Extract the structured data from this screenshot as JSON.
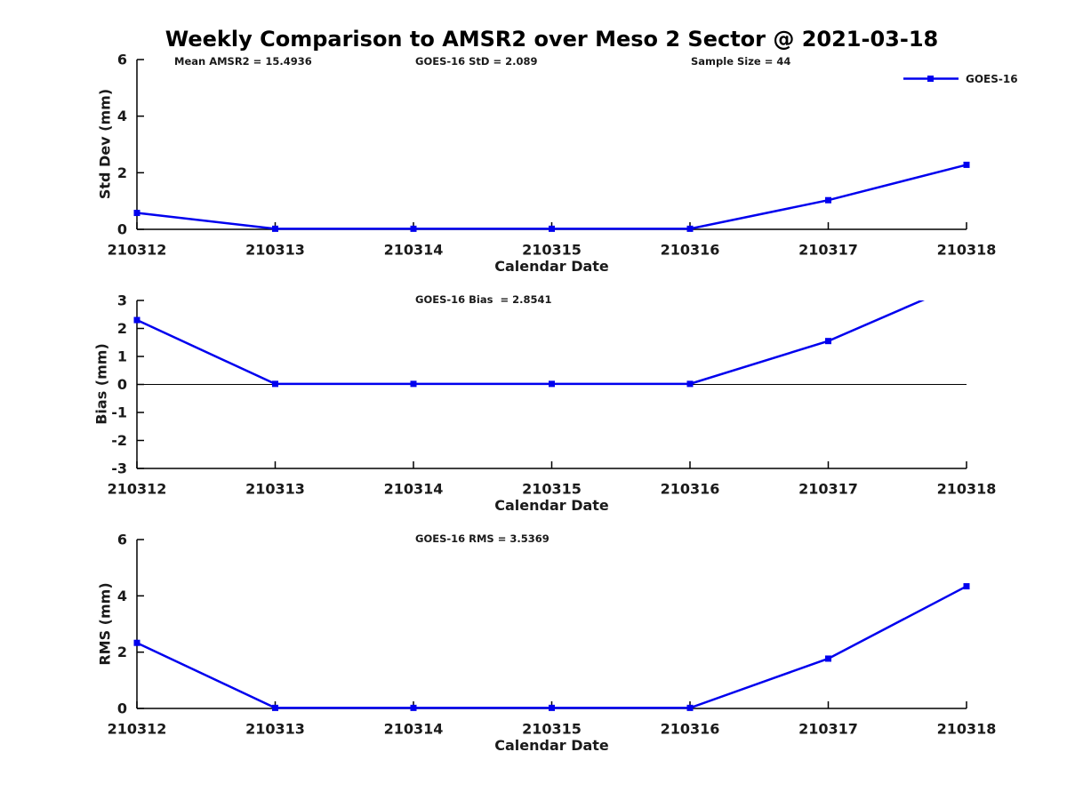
{
  "figure": {
    "title": "Weekly Comparison to AMSR2 over Meso 2 Sector @ 2021-03-18",
    "line_color": "#0000ee",
    "legend": {
      "label": "GOES-16"
    }
  },
  "chart_data": [
    {
      "type": "line",
      "panel": "std-dev",
      "annotations": {
        "left": "Mean AMSR2 = 15.4936",
        "center": "GOES-16 StD = 2.089",
        "right": "Sample Size = 44"
      },
      "ylabel": "Std Dev (mm)",
      "xlabel": "Calendar Date",
      "categories": [
        "210312",
        "210313",
        "210314",
        "210315",
        "210316",
        "210317",
        "210318"
      ],
      "yticks": [
        0,
        2,
        4,
        6
      ],
      "ylim": [
        0,
        6
      ],
      "grid": false,
      "zero_line": false,
      "legend_position": "upper right",
      "series": [
        {
          "name": "GOES-16",
          "values": [
            0.58,
            0.02,
            0.02,
            0.02,
            0.02,
            1.03,
            2.28
          ]
        }
      ]
    },
    {
      "type": "line",
      "panel": "bias",
      "annotations": {
        "center": "GOES-16 Bias  = 2.8541"
      },
      "ylabel": "Bias (mm)",
      "xlabel": "Calendar Date",
      "categories": [
        "210312",
        "210313",
        "210314",
        "210315",
        "210316",
        "210317",
        "210318"
      ],
      "yticks": [
        -3,
        -2,
        -1,
        0,
        1,
        2,
        3
      ],
      "ylim": [
        -3,
        3
      ],
      "grid": false,
      "zero_line": true,
      "series": [
        {
          "name": "GOES-16",
          "values": [
            2.3,
            0.02,
            0.02,
            0.02,
            0.02,
            1.55,
            3.69
          ]
        }
      ]
    },
    {
      "type": "line",
      "panel": "rms",
      "annotations": {
        "center": "GOES-16 RMS = 3.5369"
      },
      "ylabel": "RMS (mm)",
      "xlabel": "Calendar Date",
      "categories": [
        "210312",
        "210313",
        "210314",
        "210315",
        "210316",
        "210317",
        "210318"
      ],
      "yticks": [
        0,
        2,
        4,
        6
      ],
      "ylim": [
        0,
        6
      ],
      "grid": false,
      "zero_line": false,
      "series": [
        {
          "name": "GOES-16",
          "values": [
            2.33,
            0.02,
            0.02,
            0.02,
            0.02,
            1.77,
            4.34
          ]
        }
      ]
    }
  ]
}
